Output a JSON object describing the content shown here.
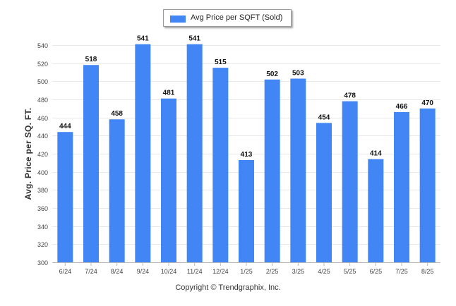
{
  "chart_data": {
    "type": "bar",
    "categories": [
      "6/24",
      "7/24",
      "8/24",
      "9/24",
      "10/24",
      "11/24",
      "12/24",
      "1/25",
      "2/25",
      "3/25",
      "4/25",
      "5/25",
      "6/25",
      "7/25",
      "8/25"
    ],
    "series": [
      {
        "name": "Avg Price per SQFT (Sold)",
        "values": [
          444,
          518,
          458,
          541,
          481,
          541,
          515,
          413,
          502,
          503,
          454,
          478,
          414,
          466,
          470
        ]
      }
    ],
    "ylabel": "Avg. Price per SQ. FT.",
    "xlabel": "",
    "ylim": [
      300,
      540
    ],
    "yticks": [
      300,
      320,
      340,
      360,
      380,
      400,
      420,
      440,
      460,
      480,
      500,
      520,
      540
    ],
    "grid": true,
    "legend_position": "top-center",
    "data_labels": true,
    "bar_color": "#4285f4"
  },
  "footer": {
    "copyright": "Copyright © Trendgraphix, Inc."
  }
}
